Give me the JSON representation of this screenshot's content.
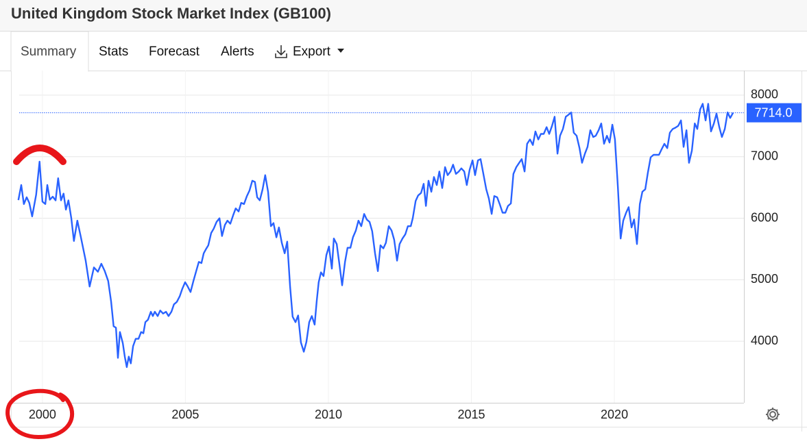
{
  "header": {
    "title": "United Kingdom Stock Market Index (GB100)"
  },
  "tabs": [
    "Summary",
    "Stats",
    "Forecast",
    "Alerts",
    "Export"
  ],
  "chart_data": {
    "type": "line",
    "x": [
      1999.16,
      1999.26,
      1999.35,
      1999.45,
      1999.54,
      1999.64,
      1999.78,
      1999.9,
      2000.0,
      2000.1,
      2000.17,
      2000.26,
      2000.36,
      2000.46,
      2000.55,
      2000.65,
      2000.74,
      2000.82,
      2000.91,
      2001.01,
      2001.1,
      2001.22,
      2001.34,
      2001.51,
      2001.65,
      2001.8,
      2001.94,
      2002.06,
      2002.18,
      2002.3,
      2002.4,
      2002.49,
      2002.57,
      2002.64,
      2002.71,
      2002.81,
      2002.88,
      2002.95,
      2003.02,
      2003.09,
      2003.17,
      2003.26,
      2003.36,
      2003.45,
      2003.53,
      2003.6,
      2003.69,
      2003.79,
      2003.86,
      2003.93,
      2004.03,
      2004.12,
      2004.22,
      2004.32,
      2004.41,
      2004.51,
      2004.6,
      2004.7,
      2004.8,
      2004.89,
      2004.99,
      2005.08,
      2005.18,
      2005.28,
      2005.37,
      2005.47,
      2005.56,
      2005.64,
      2005.71,
      2005.8,
      2005.9,
      2005.99,
      2006.09,
      2006.19,
      2006.28,
      2006.38,
      2006.47,
      2006.57,
      2006.67,
      2006.76,
      2006.86,
      2006.95,
      2007.05,
      2007.15,
      2007.24,
      2007.34,
      2007.43,
      2007.51,
      2007.6,
      2007.7,
      2007.79,
      2007.89,
      2007.99,
      2008.08,
      2008.18,
      2008.27,
      2008.37,
      2008.47,
      2008.56,
      2008.66,
      2008.75,
      2008.85,
      2008.94,
      2009.04,
      2009.14,
      2009.23,
      2009.33,
      2009.42,
      2009.52,
      2009.59,
      2009.66,
      2009.74,
      2009.83,
      2009.93,
      2010.02,
      2010.12,
      2010.19,
      2010.29,
      2010.38,
      2010.48,
      2010.58,
      2010.67,
      2010.77,
      2010.86,
      2010.96,
      2011.05,
      2011.15,
      2011.25,
      2011.34,
      2011.44,
      2011.53,
      2011.63,
      2011.73,
      2011.82,
      2011.92,
      2012.01,
      2012.11,
      2012.21,
      2012.3,
      2012.4,
      2012.49,
      2012.59,
      2012.69,
      2012.78,
      2012.88,
      2012.95,
      2013.05,
      2013.14,
      2013.24,
      2013.33,
      2013.41,
      2013.5,
      2013.6,
      2013.69,
      2013.79,
      2013.88,
      2013.98,
      2014.08,
      2014.17,
      2014.27,
      2014.36,
      2014.46,
      2014.56,
      2014.65,
      2014.75,
      2014.84,
      2014.94,
      2015.04,
      2015.13,
      2015.23,
      2015.32,
      2015.42,
      2015.52,
      2015.61,
      2015.71,
      2015.8,
      2015.9,
      2015.99,
      2016.09,
      2016.19,
      2016.28,
      2016.38,
      2016.47,
      2016.57,
      2016.67,
      2016.76,
      2016.86,
      2016.95,
      2017.05,
      2017.15,
      2017.24,
      2017.34,
      2017.43,
      2017.53,
      2017.63,
      2017.72,
      2017.82,
      2017.91,
      2018.01,
      2018.1,
      2018.2,
      2018.3,
      2018.39,
      2018.49,
      2018.58,
      2018.68,
      2018.78,
      2018.87,
      2018.97,
      2019.06,
      2019.16,
      2019.26,
      2019.35,
      2019.45,
      2019.54,
      2019.64,
      2019.74,
      2019.83,
      2019.93,
      2020.02,
      2020.12,
      2020.22,
      2020.31,
      2020.41,
      2020.5,
      2020.6,
      2020.69,
      2020.79,
      2020.89,
      2020.98,
      2021.08,
      2021.17,
      2021.27,
      2021.37,
      2021.46,
      2021.56,
      2021.65,
      2021.75,
      2021.85,
      2021.94,
      2022.04,
      2022.13,
      2022.23,
      2022.33,
      2022.42,
      2022.52,
      2022.61,
      2022.71,
      2022.81,
      2022.9,
      2023.0,
      2023.09,
      2023.19,
      2023.28,
      2023.38,
      2023.48,
      2023.57,
      2023.67,
      2023.76,
      2023.86,
      2023.96,
      2024.05,
      2024.15
    ],
    "series": [
      {
        "color": "#2962ff",
        "values": [
          6295,
          6540,
          6230,
          6340,
          6250,
          6030,
          6380,
          6920,
          6270,
          6230,
          6540,
          6300,
          6350,
          6290,
          6650,
          6290,
          6400,
          6140,
          6290,
          6000,
          5630,
          5960,
          5700,
          5315,
          4890,
          5200,
          5130,
          5260,
          5140,
          4980,
          4650,
          4245,
          4220,
          3730,
          4150,
          3970,
          3750,
          3580,
          3750,
          3640,
          3920,
          4040,
          4040,
          4150,
          4130,
          4310,
          4350,
          4480,
          4410,
          4480,
          4410,
          4500,
          4450,
          4480,
          4410,
          4480,
          4600,
          4640,
          4730,
          4850,
          4960,
          4890,
          4800,
          4980,
          5130,
          5290,
          5270,
          5430,
          5490,
          5560,
          5760,
          5830,
          5940,
          6000,
          5710,
          5890,
          5960,
          5910,
          6050,
          6160,
          6110,
          6250,
          6230,
          6360,
          6450,
          6610,
          6590,
          6340,
          6290,
          6470,
          6700,
          6430,
          5870,
          5920,
          5690,
          5850,
          5600,
          5430,
          5620,
          4890,
          4400,
          4310,
          4420,
          3980,
          3830,
          3990,
          4310,
          4410,
          4270,
          4650,
          4960,
          5120,
          5060,
          5400,
          5540,
          5180,
          5670,
          5580,
          5270,
          4910,
          5290,
          5520,
          5520,
          5690,
          5800,
          5960,
          5870,
          6070,
          5980,
          5940,
          5790,
          5430,
          5140,
          5560,
          5510,
          5600,
          5870,
          5800,
          5650,
          5310,
          5580,
          5670,
          5740,
          5870,
          5870,
          6000,
          6280,
          6370,
          6410,
          6560,
          6200,
          6610,
          6430,
          6670,
          6540,
          6760,
          6490,
          6830,
          6700,
          6760,
          6870,
          6720,
          6760,
          6810,
          6760,
          6540,
          6790,
          6940,
          6700,
          6940,
          6960,
          6720,
          6470,
          6320,
          6070,
          6360,
          6340,
          6230,
          6090,
          6090,
          6200,
          6240,
          6720,
          6830,
          6900,
          6960,
          6760,
          7210,
          7280,
          7190,
          7410,
          7280,
          7370,
          7370,
          7480,
          7370,
          7500,
          7650,
          7050,
          7340,
          7450,
          7650,
          7680,
          7720,
          7390,
          7340,
          7140,
          6900,
          7050,
          7160,
          7430,
          7320,
          7340,
          7430,
          7540,
          7210,
          7340,
          7230,
          7520,
          7280,
          6520,
          5670,
          5960,
          6090,
          6180,
          5850,
          5980,
          5580,
          6230,
          6430,
          6470,
          6740,
          6990,
          7030,
          7030,
          7030,
          7120,
          7210,
          7140,
          7390,
          7450,
          7470,
          7500,
          7590,
          7160,
          7430,
          6900,
          7100,
          7540,
          7450,
          7770,
          7860,
          7590,
          7860,
          7410,
          7540,
          7700,
          7480,
          7320,
          7450,
          7720,
          7630,
          7714
        ]
      }
    ],
    "xlim": [
      1998.9,
      2024.53
    ],
    "xticks": [
      2000,
      2005,
      2010,
      2015,
      2020
    ],
    "ylim": [
      3000,
      8400
    ],
    "yticks": [
      4000,
      5000,
      6000,
      7000,
      8000
    ],
    "grid": true,
    "reference_line": {
      "value": 7714,
      "label": "7714.0",
      "color": "#2962ff"
    }
  }
}
